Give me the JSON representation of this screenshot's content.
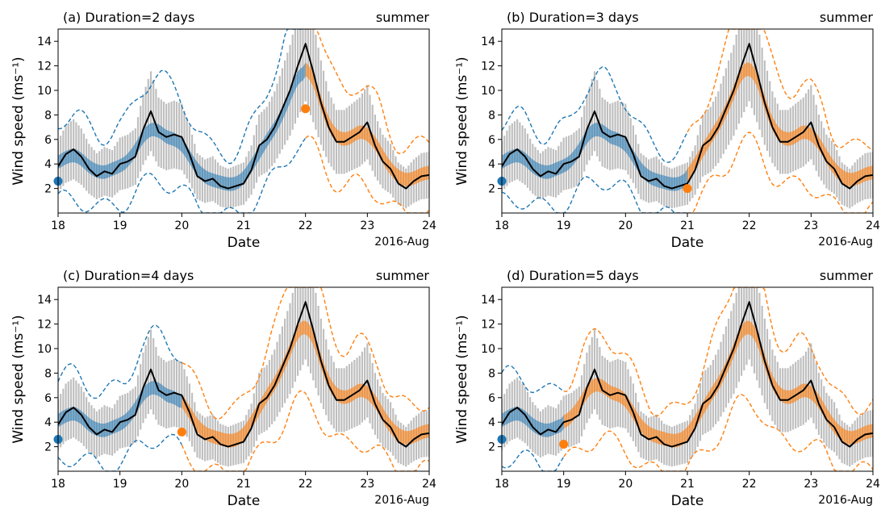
{
  "figure": {
    "colors": {
      "observation": "#000000",
      "spread_bars": "#bfbfbf",
      "blue_series": "#1f77b4",
      "orange_series": "#ff7f0e"
    }
  },
  "chart_data": [
    {
      "type": "line",
      "title": "(a) Duration=2 days",
      "season_label": "summer",
      "xlabel": "Date",
      "ylabel": "Wind speed (ms⁻¹)",
      "x_unit_label": "2016-Aug",
      "xlim": [
        "2016-08-18",
        "2016-08-24"
      ],
      "ylim": [
        0,
        15
      ],
      "x_ticks": [
        "18",
        "19",
        "20",
        "21",
        "22",
        "23",
        "24"
      ],
      "y_ticks": [
        2,
        4,
        6,
        8,
        10,
        12,
        14
      ],
      "switch_date": "2016-08-22",
      "marker_blue": {
        "x": "2016-08-18",
        "y": 2.6
      },
      "marker_orange": {
        "x": "2016-08-22",
        "y": 8.5
      }
    },
    {
      "type": "line",
      "title": "(b) Duration=3 days",
      "season_label": "summer",
      "xlabel": "Date",
      "ylabel": "Wind speed (ms⁻¹)",
      "x_unit_label": "2016-Aug",
      "xlim": [
        "2016-08-18",
        "2016-08-24"
      ],
      "ylim": [
        0,
        15
      ],
      "x_ticks": [
        "18",
        "19",
        "20",
        "21",
        "22",
        "23",
        "24"
      ],
      "y_ticks": [
        2,
        4,
        6,
        8,
        10,
        12,
        14
      ],
      "switch_date": "2016-08-21",
      "marker_blue": {
        "x": "2016-08-18",
        "y": 2.6
      },
      "marker_orange": {
        "x": "2016-08-21",
        "y": 2.0
      }
    },
    {
      "type": "line",
      "title": "(c) Duration=4 days",
      "season_label": "summer",
      "xlabel": "Date",
      "ylabel": "Wind speed (ms⁻¹)",
      "x_unit_label": "2016-Aug",
      "xlim": [
        "2016-08-18",
        "2016-08-24"
      ],
      "ylim": [
        0,
        15
      ],
      "x_ticks": [
        "18",
        "19",
        "20",
        "21",
        "22",
        "23",
        "24"
      ],
      "y_ticks": [
        2,
        4,
        6,
        8,
        10,
        12,
        14
      ],
      "switch_date": "2016-08-20",
      "marker_blue": {
        "x": "2016-08-18",
        "y": 2.6
      },
      "marker_orange": {
        "x": "2016-08-20",
        "y": 3.2
      }
    },
    {
      "type": "line",
      "title": "(d) Duration=5 days",
      "season_label": "summer",
      "xlabel": "Date",
      "ylabel": "Wind speed (ms⁻¹)",
      "x_unit_label": "2016-Aug",
      "xlim": [
        "2016-08-18",
        "2016-08-24"
      ],
      "ylim": [
        0,
        15
      ],
      "x_ticks": [
        "18",
        "19",
        "20",
        "21",
        "22",
        "23",
        "24"
      ],
      "y_ticks": [
        2,
        4,
        6,
        8,
        10,
        12,
        14
      ],
      "switch_date": "2016-08-19",
      "marker_blue": {
        "x": "2016-08-18",
        "y": 2.6
      },
      "marker_orange": {
        "x": "2016-08-19",
        "y": 2.2
      }
    }
  ],
  "observation_series": [
    [
      "2016-08-18T00",
      3.8
    ],
    [
      "2016-08-18T03",
      4.8
    ],
    [
      "2016-08-18T06",
      5.2
    ],
    [
      "2016-08-18T09",
      4.6
    ],
    [
      "2016-08-18T12",
      3.6
    ],
    [
      "2016-08-18T15",
      3.0
    ],
    [
      "2016-08-18T18",
      3.4
    ],
    [
      "2016-08-18T21",
      3.2
    ],
    [
      "2016-08-19T00",
      4.0
    ],
    [
      "2016-08-19T03",
      4.2
    ],
    [
      "2016-08-19T06",
      4.6
    ],
    [
      "2016-08-19T09",
      6.8
    ],
    [
      "2016-08-19T12",
      8.3
    ],
    [
      "2016-08-19T15",
      6.6
    ],
    [
      "2016-08-19T18",
      6.2
    ],
    [
      "2016-08-19T21",
      6.4
    ],
    [
      "2016-08-20T00",
      6.2
    ],
    [
      "2016-08-20T03",
      4.8
    ],
    [
      "2016-08-20T06",
      3.0
    ],
    [
      "2016-08-20T09",
      2.6
    ],
    [
      "2016-08-20T12",
      2.8
    ],
    [
      "2016-08-20T15",
      2.2
    ],
    [
      "2016-08-20T18",
      2.0
    ],
    [
      "2016-08-20T21",
      2.2
    ],
    [
      "2016-08-21T00",
      2.4
    ],
    [
      "2016-08-21T03",
      3.5
    ],
    [
      "2016-08-21T06",
      5.5
    ],
    [
      "2016-08-21T09",
      6.0
    ],
    [
      "2016-08-21T12",
      7.0
    ],
    [
      "2016-08-21T15",
      8.5
    ],
    [
      "2016-08-21T18",
      10.0
    ],
    [
      "2016-08-21T21",
      12.0
    ],
    [
      "2016-08-22T00",
      13.8
    ],
    [
      "2016-08-22T03",
      11.5
    ],
    [
      "2016-08-22T06",
      9.0
    ],
    [
      "2016-08-22T09",
      7.0
    ],
    [
      "2016-08-22T12",
      5.8
    ],
    [
      "2016-08-22T15",
      5.8
    ],
    [
      "2016-08-22T18",
      6.2
    ],
    [
      "2016-08-22T21",
      6.6
    ],
    [
      "2016-08-23T00",
      7.4
    ],
    [
      "2016-08-23T03",
      5.5
    ],
    [
      "2016-08-23T06",
      4.2
    ],
    [
      "2016-08-23T09",
      3.6
    ],
    [
      "2016-08-23T12",
      2.4
    ],
    [
      "2016-08-23T15",
      2.0
    ],
    [
      "2016-08-23T18",
      2.6
    ],
    [
      "2016-08-23T21",
      3.0
    ],
    [
      "2016-08-24T00",
      3.1
    ]
  ]
}
